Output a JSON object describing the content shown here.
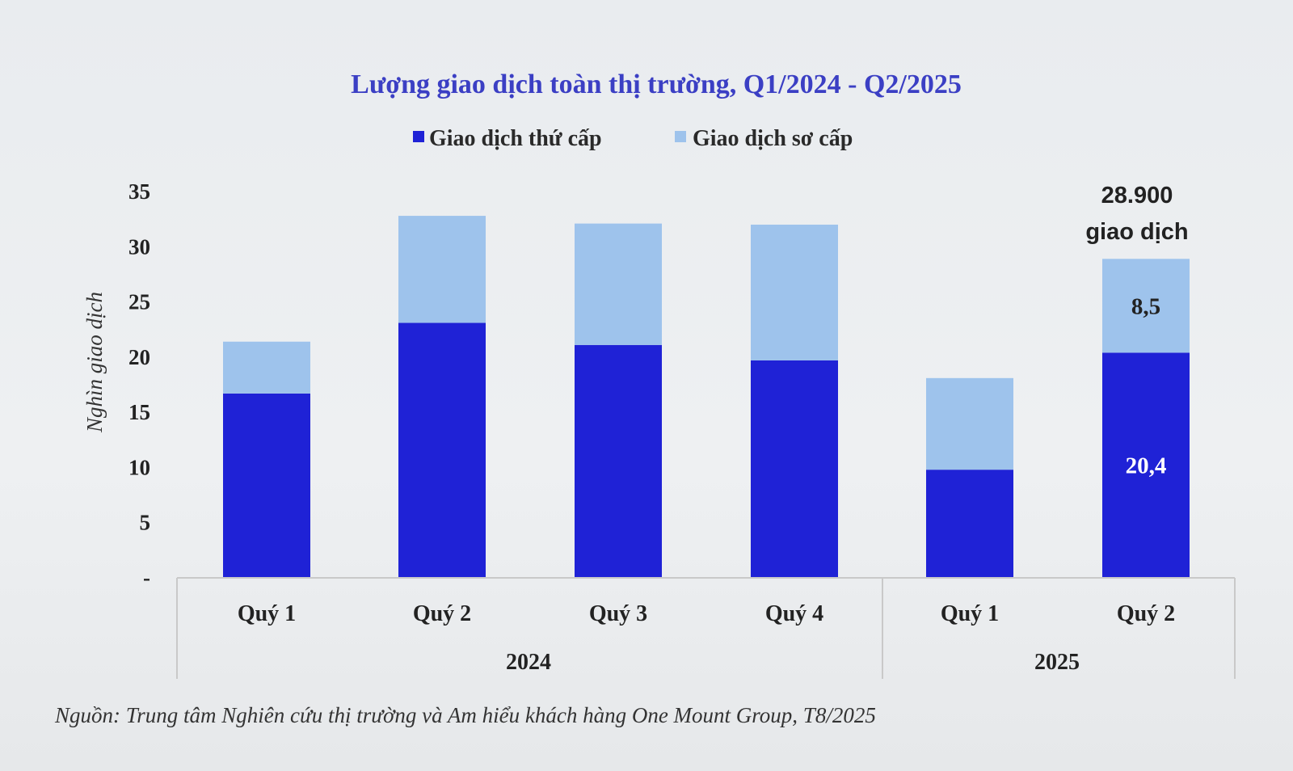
{
  "chart_data": {
    "type": "bar",
    "stacked": true,
    "title": "Lượng giao dịch toàn thị trường, Q1/2024 - Q2/2025",
    "ylabel": "Nghìn giao dịch",
    "ylim": [
      0,
      35
    ],
    "yticks": [
      0,
      5,
      10,
      15,
      20,
      25,
      30,
      35
    ],
    "ytick_labels": [
      "-",
      "5",
      "10",
      "15",
      "20",
      "25",
      "30",
      "35"
    ],
    "categories": [
      "Quý 1",
      "Quý 2",
      "Quý 3",
      "Quý 4",
      "Quý 1",
      "Quý 2"
    ],
    "groups": [
      {
        "label": "2024",
        "count": 4
      },
      {
        "label": "2025",
        "count": 2
      }
    ],
    "series": [
      {
        "name": "Giao dịch thứ cấp",
        "color": "#1f22d6",
        "values": [
          16.7,
          23.1,
          21.1,
          19.7,
          9.8,
          20.4
        ]
      },
      {
        "name": "Giao dịch sơ cấp",
        "color": "#9ec3ec",
        "values": [
          4.7,
          9.7,
          11.0,
          12.3,
          8.3,
          8.5
        ]
      }
    ],
    "data_labels": [
      {
        "series": 1,
        "index": 5,
        "text": "8,5"
      },
      {
        "series": 0,
        "index": 5,
        "text": "20,4"
      }
    ],
    "annotation": {
      "index": 5,
      "lines": [
        "28.900",
        "giao dịch"
      ]
    },
    "legend_position": "top-center",
    "grid": false
  },
  "source": "Nguồn: Trung tâm Nghiên cứu thị trường và Am hiểu khách hàng One Mount Group, T8/2025"
}
